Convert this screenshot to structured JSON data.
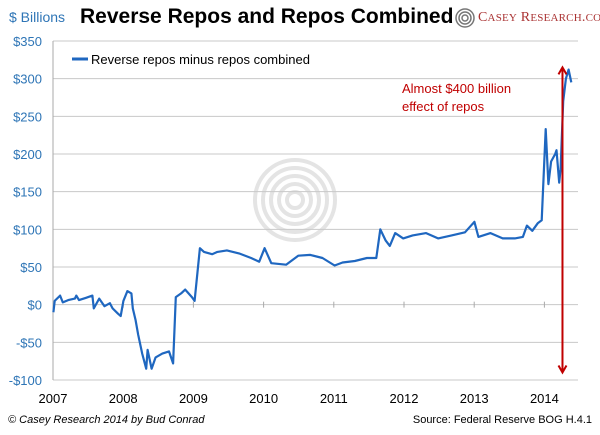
{
  "chart_data": {
    "type": "line",
    "title": "Reverse Repos and Repos Combined",
    "ylabel": "$ Billions",
    "xlabel": "",
    "ylim": [
      -100,
      350
    ],
    "yticks": [
      -100,
      -50,
      0,
      50,
      100,
      150,
      200,
      250,
      300,
      350
    ],
    "ytick_labels": [
      "-$100",
      "-$50",
      "$0",
      "$50",
      "$100",
      "$150",
      "$200",
      "$250",
      "$300",
      "$350"
    ],
    "xticks": [
      "2007",
      "2008",
      "2009",
      "2010",
      "2011",
      "2012",
      "2013",
      "2014"
    ],
    "grid": true,
    "legend_placement": "top-left",
    "series": [
      {
        "name": "Reverse repos minus repos combined",
        "color": "#1f67c0",
        "points": [
          [
            "2007-01-03",
            -10
          ],
          [
            "2007-01-10",
            5
          ],
          [
            "2007-02-07",
            12
          ],
          [
            "2007-02-21",
            3
          ],
          [
            "2007-03-21",
            6
          ],
          [
            "2007-04-25",
            8
          ],
          [
            "2007-05-02",
            12
          ],
          [
            "2007-05-16",
            6
          ],
          [
            "2007-06-20",
            9
          ],
          [
            "2007-07-25",
            12
          ],
          [
            "2007-08-01",
            -5
          ],
          [
            "2007-08-29",
            8
          ],
          [
            "2007-09-26",
            -2
          ],
          [
            "2007-10-24",
            2
          ],
          [
            "2007-11-07",
            -5
          ],
          [
            "2007-12-05",
            -12
          ],
          [
            "2007-12-19",
            -15
          ],
          [
            "2008-01-02",
            5
          ],
          [
            "2008-01-23",
            18
          ],
          [
            "2008-02-13",
            15
          ],
          [
            "2008-02-20",
            -5
          ],
          [
            "2008-03-05",
            -20
          ],
          [
            "2008-03-19",
            -40
          ],
          [
            "2008-04-09",
            -65
          ],
          [
            "2008-04-30",
            -85
          ],
          [
            "2008-05-07",
            -60
          ],
          [
            "2008-05-28",
            -85
          ],
          [
            "2008-06-18",
            -70
          ],
          [
            "2008-07-23",
            -65
          ],
          [
            "2008-08-27",
            -62
          ],
          [
            "2008-09-17",
            -78
          ],
          [
            "2008-10-01",
            10
          ],
          [
            "2008-10-29",
            15
          ],
          [
            "2008-11-19",
            20
          ],
          [
            "2008-12-24",
            10
          ],
          [
            "2009-01-07",
            5
          ],
          [
            "2009-02-04",
            75
          ],
          [
            "2009-02-25",
            70
          ],
          [
            "2009-04-08",
            67
          ],
          [
            "2009-05-06",
            70
          ],
          [
            "2009-06-24",
            72
          ],
          [
            "2009-08-26",
            68
          ],
          [
            "2009-10-28",
            62
          ],
          [
            "2009-12-09",
            57
          ],
          [
            "2010-01-06",
            75
          ],
          [
            "2010-02-10",
            55
          ],
          [
            "2010-04-28",
            53
          ],
          [
            "2010-06-30",
            65
          ],
          [
            "2010-09-01",
            66
          ],
          [
            "2010-11-03",
            62
          ],
          [
            "2011-01-05",
            52
          ],
          [
            "2011-02-16",
            56
          ],
          [
            "2011-04-20",
            58
          ],
          [
            "2011-06-22",
            62
          ],
          [
            "2011-08-10",
            62
          ],
          [
            "2011-08-31",
            100
          ],
          [
            "2011-09-28",
            85
          ],
          [
            "2011-10-19",
            78
          ],
          [
            "2011-11-16",
            95
          ],
          [
            "2011-12-28",
            88
          ],
          [
            "2012-02-15",
            92
          ],
          [
            "2012-04-25",
            95
          ],
          [
            "2012-06-27",
            88
          ],
          [
            "2012-09-05",
            92
          ],
          [
            "2012-11-14",
            96
          ],
          [
            "2013-01-02",
            110
          ],
          [
            "2013-01-23",
            90
          ],
          [
            "2013-03-27",
            95
          ],
          [
            "2013-05-29",
            88
          ],
          [
            "2013-07-31",
            88
          ],
          [
            "2013-09-11",
            90
          ],
          [
            "2013-10-02",
            105
          ],
          [
            "2013-10-30",
            98
          ],
          [
            "2013-11-27",
            108
          ],
          [
            "2013-12-18",
            112
          ],
          [
            "2014-01-08",
            233
          ],
          [
            "2014-01-22",
            160
          ],
          [
            "2014-02-05",
            190
          ],
          [
            "2014-02-26",
            200
          ],
          [
            "2014-03-05",
            205
          ],
          [
            "2014-03-19",
            162
          ],
          [
            "2014-03-26",
            180
          ],
          [
            "2014-04-09",
            270
          ],
          [
            "2014-04-23",
            300
          ],
          [
            "2014-05-07",
            312
          ],
          [
            "2014-05-21",
            295
          ]
        ]
      }
    ],
    "annotations": [
      {
        "text_lines": [
          "Almost $400 billion",
          "effect of repos"
        ],
        "color": "#c00000",
        "arrow": {
          "x": "2014-04-05",
          "y_from": -90,
          "y_to": 315
        }
      }
    ]
  },
  "header": {
    "unit_label": "$ Billions",
    "title": "Reverse Repos and Repos Combined"
  },
  "logo": {
    "text": "CASEY RESEARCH.COM"
  },
  "footer": {
    "left": "© Casey Research 2014 by Bud Conrad",
    "right": "Source: Federal Reserve BOG H.4.1"
  }
}
